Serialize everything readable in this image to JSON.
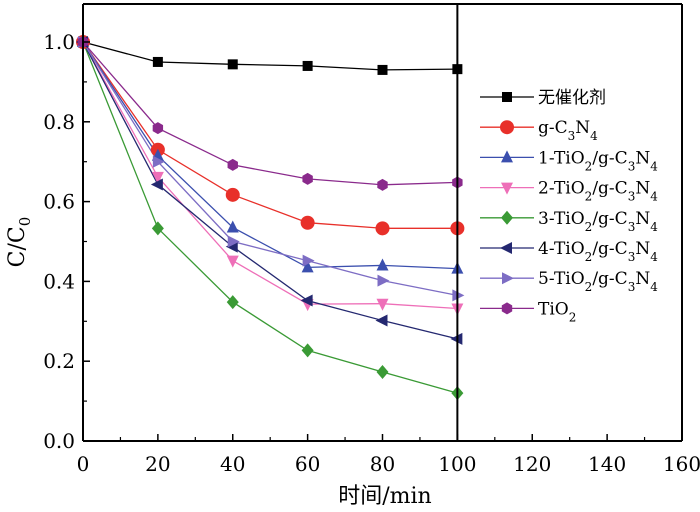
{
  "chart_data": {
    "type": "line",
    "title": "",
    "xlabel": "时间/min",
    "ylabel": "C/C",
    "ylabel_sub": "0",
    "xlim": [
      0,
      160
    ],
    "ylim": [
      0,
      1.1
    ],
    "xticks": [
      0,
      20,
      40,
      60,
      80,
      100,
      120,
      140,
      160
    ],
    "xtick_labels": [
      "0",
      "20",
      "40",
      "60",
      "80",
      "100",
      "120",
      "140",
      "160"
    ],
    "yticks": [
      0,
      0.2,
      0.4,
      0.6,
      0.8,
      1.0
    ],
    "ytick_labels": [
      "0.0",
      "0.2",
      "0.4",
      "0.6",
      "0.8",
      "1.0"
    ],
    "divider_x": 100,
    "grid": false,
    "legend_position": "right",
    "x": [
      0,
      20,
      40,
      60,
      80,
      100
    ],
    "series": [
      {
        "name": "无催化剂",
        "legend": [
          {
            "t": "无催化剂",
            "s": false
          }
        ],
        "color": "#000000",
        "marker": "square",
        "values": [
          1.0,
          0.95,
          0.944,
          0.94,
          0.93,
          0.932
        ]
      },
      {
        "name": "g-C3N4",
        "legend": [
          {
            "t": "g-C",
            "s": false
          },
          {
            "t": "3",
            "s": true
          },
          {
            "t": "N",
            "s": false
          },
          {
            "t": "4",
            "s": true
          }
        ],
        "color": "#e8302a",
        "marker": "circle",
        "values": [
          1.0,
          0.73,
          0.617,
          0.547,
          0.533,
          0.533
        ]
      },
      {
        "name": "1-TiO2/g-C3N4",
        "legend": [
          {
            "t": "1-TiO",
            "s": false
          },
          {
            "t": "2",
            "s": true
          },
          {
            "t": "/g-C",
            "s": false
          },
          {
            "t": "3",
            "s": true
          },
          {
            "t": "N",
            "s": false
          },
          {
            "t": "4",
            "s": true
          }
        ],
        "color": "#3b4fae",
        "marker": "triangle-up",
        "values": [
          1.0,
          0.715,
          0.535,
          0.435,
          0.44,
          0.432
        ]
      },
      {
        "name": "2-TiO2/g-C3N4",
        "legend": [
          {
            "t": "2-TiO",
            "s": false
          },
          {
            "t": "2",
            "s": true
          },
          {
            "t": "/g-C",
            "s": false
          },
          {
            "t": "3",
            "s": true
          },
          {
            "t": "N",
            "s": false
          },
          {
            "t": "4",
            "s": true
          }
        ],
        "color": "#ee6fb8",
        "marker": "triangle-down",
        "values": [
          1.0,
          0.662,
          0.452,
          0.343,
          0.344,
          0.332
        ]
      },
      {
        "name": "3-TiO2/g-C3N4",
        "legend": [
          {
            "t": "3-TiO",
            "s": false
          },
          {
            "t": "2",
            "s": true
          },
          {
            "t": "/g-C",
            "s": false
          },
          {
            "t": "3",
            "s": true
          },
          {
            "t": "N",
            "s": false
          },
          {
            "t": "4",
            "s": true
          }
        ],
        "color": "#3a9a35",
        "marker": "diamond",
        "values": [
          1.0,
          0.533,
          0.348,
          0.227,
          0.173,
          0.12
        ]
      },
      {
        "name": "4-TiO2/g-C3N4",
        "legend": [
          {
            "t": "4-TiO",
            "s": false
          },
          {
            "t": "2",
            "s": true
          },
          {
            "t": "/g-C",
            "s": false
          },
          {
            "t": "3",
            "s": true
          },
          {
            "t": "N",
            "s": false
          },
          {
            "t": "4",
            "s": true
          }
        ],
        "color": "#242870",
        "marker": "triangle-left",
        "values": [
          1.0,
          0.643,
          0.487,
          0.352,
          0.302,
          0.256
        ]
      },
      {
        "name": "5-TiO2/g-C3N4",
        "legend": [
          {
            "t": "5-TiO",
            "s": false
          },
          {
            "t": "2",
            "s": true
          },
          {
            "t": "/g-C",
            "s": false
          },
          {
            "t": "3",
            "s": true
          },
          {
            "t": "N",
            "s": false
          },
          {
            "t": "4",
            "s": true
          }
        ],
        "color": "#7d6dc4",
        "marker": "triangle-right",
        "values": [
          1.0,
          0.7,
          0.5,
          0.452,
          0.402,
          0.365
        ]
      },
      {
        "name": "TiO2",
        "legend": [
          {
            "t": "TiO",
            "s": false
          },
          {
            "t": "2",
            "s": true
          }
        ],
        "color": "#8a2a8c",
        "marker": "hexagon",
        "values": [
          1.0,
          0.784,
          0.692,
          0.657,
          0.642,
          0.648
        ]
      }
    ]
  }
}
